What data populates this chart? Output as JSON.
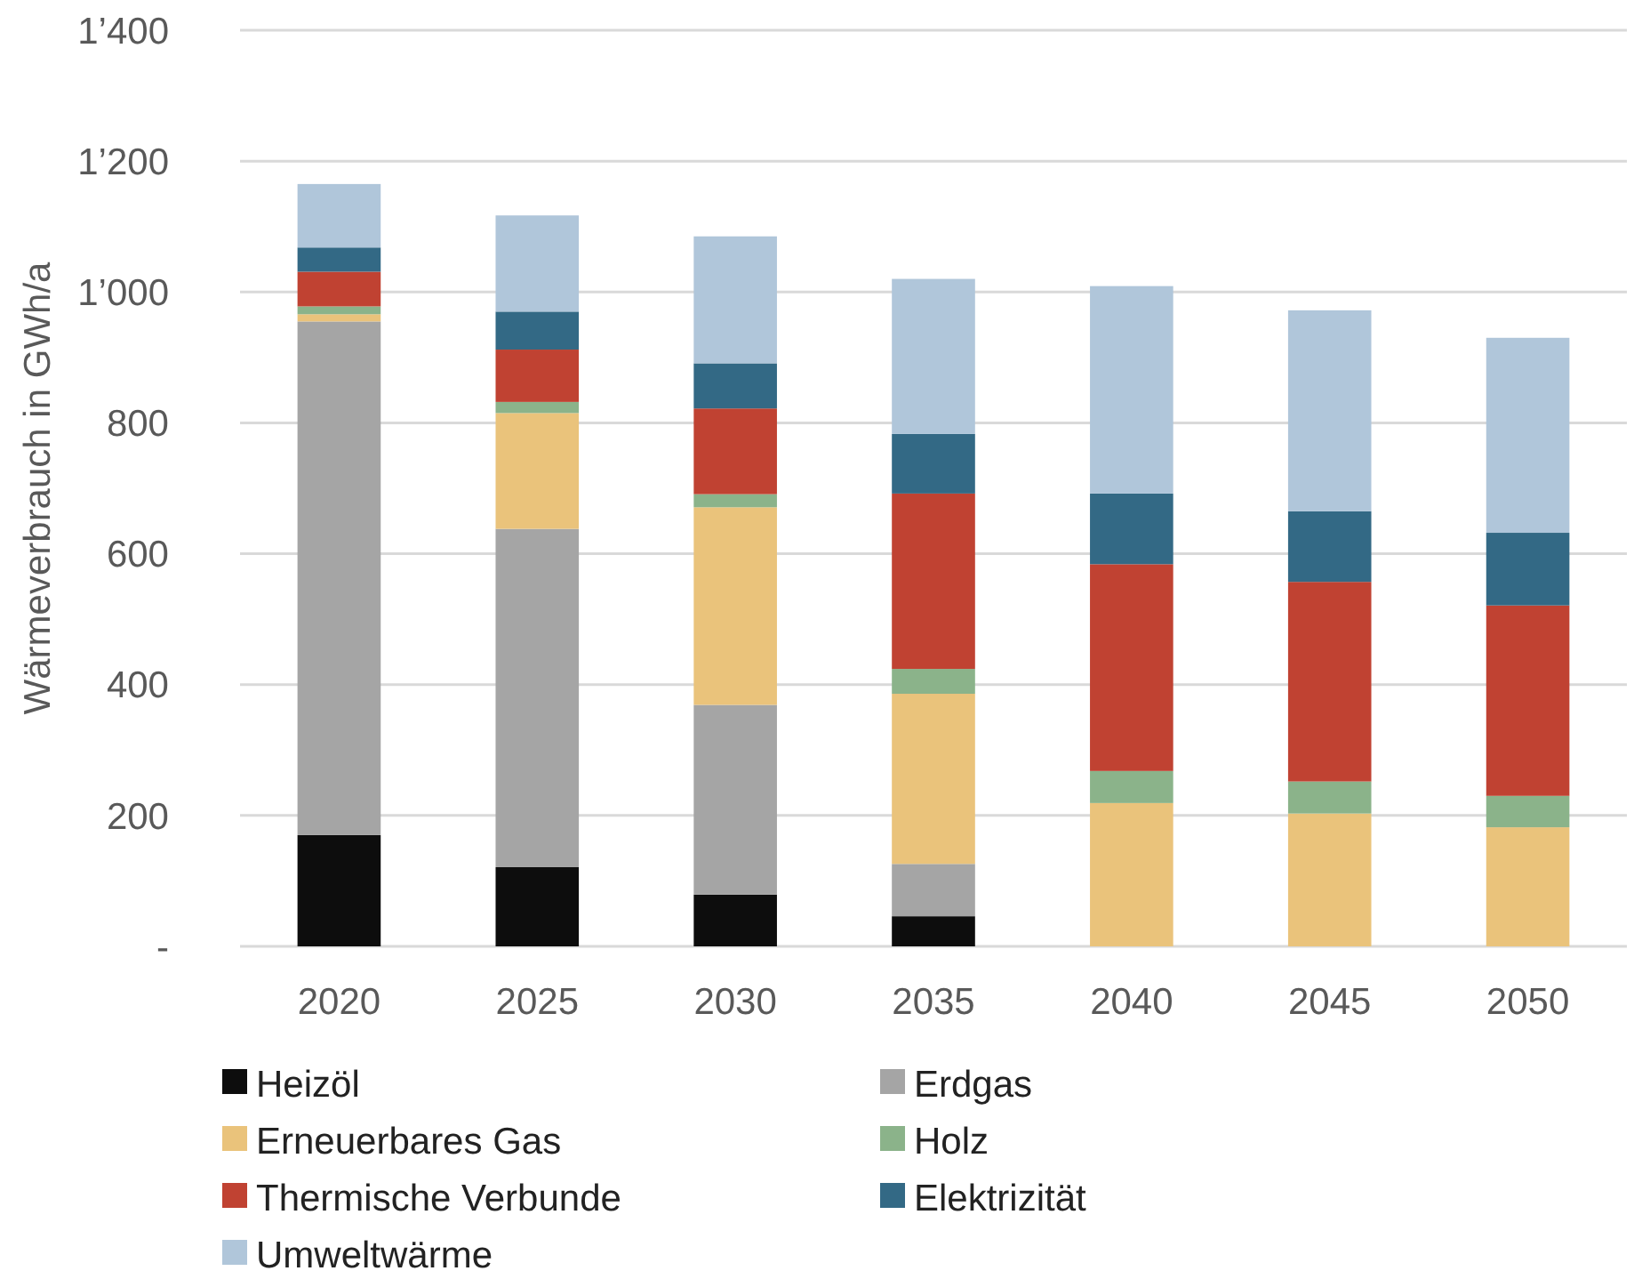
{
  "chart_data": {
    "type": "bar",
    "stacked": true,
    "ylabel": "Wärmeverbrauch in GWh/a",
    "categories": [
      "2020",
      "2025",
      "2030",
      "2035",
      "2040",
      "2045",
      "2050"
    ],
    "series": [
      {
        "name": "Heizöl",
        "color": "#0d0d0d",
        "values": [
          170,
          121,
          79,
          46,
          0,
          0,
          0
        ]
      },
      {
        "name": "Erdgas",
        "color": "#a5a5a5",
        "values": [
          785,
          517,
          290,
          80,
          0,
          0,
          0
        ]
      },
      {
        "name": "Erneuerbares Gas",
        "color": "#eac37b",
        "values": [
          11,
          177,
          302,
          260,
          219,
          203,
          182
        ]
      },
      {
        "name": "Holz",
        "color": "#8bb38a",
        "values": [
          12,
          17,
          20,
          38,
          49,
          49,
          48
        ]
      },
      {
        "name": "Thermische Verbunde",
        "color": "#c04232",
        "values": [
          53,
          80,
          131,
          268,
          316,
          305,
          291
        ]
      },
      {
        "name": "Elektrizität",
        "color": "#336985",
        "values": [
          37,
          58,
          69,
          91,
          108,
          108,
          111
        ]
      },
      {
        "name": "Umweltwärme",
        "color": "#b0c6da",
        "values": [
          97,
          147,
          194,
          237,
          317,
          307,
          298
        ]
      }
    ],
    "ylim": [
      0,
      1400
    ],
    "yticks": [
      {
        "value": 0,
        "label": "-"
      },
      {
        "value": 200,
        "label": "200"
      },
      {
        "value": 400,
        "label": "400"
      },
      {
        "value": 600,
        "label": "600"
      },
      {
        "value": 800,
        "label": "800"
      },
      {
        "value": 1000,
        "label": "1’000"
      },
      {
        "value": 1200,
        "label": "1’200"
      },
      {
        "value": 1400,
        "label": "1’400"
      }
    ],
    "grid": "y",
    "legend": "bottom"
  }
}
